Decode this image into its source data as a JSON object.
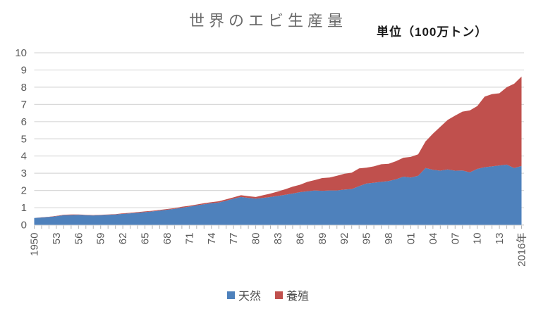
{
  "chart_data": {
    "type": "area",
    "stacked": true,
    "title": "世界のエビ生産量",
    "unit_label": "単位（100万トン）",
    "x": [
      1950,
      1951,
      1952,
      1953,
      1954,
      1955,
      1956,
      1957,
      1958,
      1959,
      1960,
      1961,
      1962,
      1963,
      1964,
      1965,
      1966,
      1967,
      1968,
      1969,
      1970,
      1971,
      1972,
      1973,
      1974,
      1975,
      1976,
      1977,
      1978,
      1979,
      1980,
      1981,
      1982,
      1983,
      1984,
      1985,
      1986,
      1987,
      1988,
      1989,
      1990,
      1991,
      1992,
      1993,
      1994,
      1995,
      1996,
      1997,
      1998,
      1999,
      2000,
      2001,
      2002,
      2003,
      2004,
      2005,
      2006,
      2007,
      2008,
      2009,
      2010,
      2011,
      2012,
      2013,
      2014,
      2015,
      2016
    ],
    "series": [
      {
        "name": "天然",
        "color": "#4e81bc",
        "values": [
          0.4,
          0.43,
          0.46,
          0.5,
          0.56,
          0.57,
          0.58,
          0.56,
          0.55,
          0.56,
          0.58,
          0.6,
          0.64,
          0.67,
          0.7,
          0.74,
          0.78,
          0.83,
          0.88,
          0.93,
          1.0,
          1.06,
          1.13,
          1.2,
          1.26,
          1.3,
          1.4,
          1.52,
          1.62,
          1.57,
          1.52,
          1.57,
          1.62,
          1.68,
          1.75,
          1.82,
          1.9,
          1.95,
          2.0,
          1.98,
          2.0,
          2.0,
          2.05,
          2.08,
          2.25,
          2.4,
          2.45,
          2.5,
          2.55,
          2.65,
          2.8,
          2.75,
          2.85,
          3.3,
          3.2,
          3.15,
          3.22,
          3.15,
          3.16,
          3.05,
          3.25,
          3.35,
          3.4,
          3.45,
          3.5,
          3.3,
          3.42
        ]
      },
      {
        "name": "養殖",
        "color": "#c0504d",
        "values": [
          0.0,
          0.01,
          0.01,
          0.02,
          0.03,
          0.03,
          0.02,
          0.02,
          0.02,
          0.02,
          0.02,
          0.02,
          0.03,
          0.03,
          0.04,
          0.04,
          0.04,
          0.04,
          0.04,
          0.04,
          0.05,
          0.05,
          0.05,
          0.06,
          0.06,
          0.07,
          0.08,
          0.08,
          0.1,
          0.1,
          0.1,
          0.15,
          0.2,
          0.26,
          0.32,
          0.4,
          0.43,
          0.55,
          0.6,
          0.74,
          0.75,
          0.85,
          0.92,
          0.95,
          1.03,
          0.92,
          0.95,
          1.02,
          1.0,
          1.05,
          1.1,
          1.2,
          1.25,
          1.55,
          2.1,
          2.55,
          2.88,
          3.2,
          3.42,
          3.6,
          3.65,
          4.1,
          4.2,
          4.2,
          4.5,
          4.9,
          5.2
        ]
      }
    ],
    "ylim": [
      0,
      10
    ],
    "ytick_labels": [
      "0",
      "1",
      "2",
      "3",
      "4",
      "5",
      "6",
      "7",
      "8",
      "9",
      "10"
    ],
    "xtick_label_step": 3,
    "xtick_labels": [
      "1950",
      "53",
      "56",
      "59",
      "62",
      "65",
      "68",
      "71",
      "74",
      "77",
      "80",
      "83",
      "86",
      "89",
      "92",
      "95",
      "98",
      "01",
      "04",
      "07",
      "10",
      "13",
      "2016年"
    ],
    "grid": true,
    "legend_position": "bottom",
    "colors": {
      "gridline": "#d9d9d9",
      "tick": "#b3b3b3",
      "axis_text": "#595959",
      "title_text": "#6a6a6a"
    }
  }
}
